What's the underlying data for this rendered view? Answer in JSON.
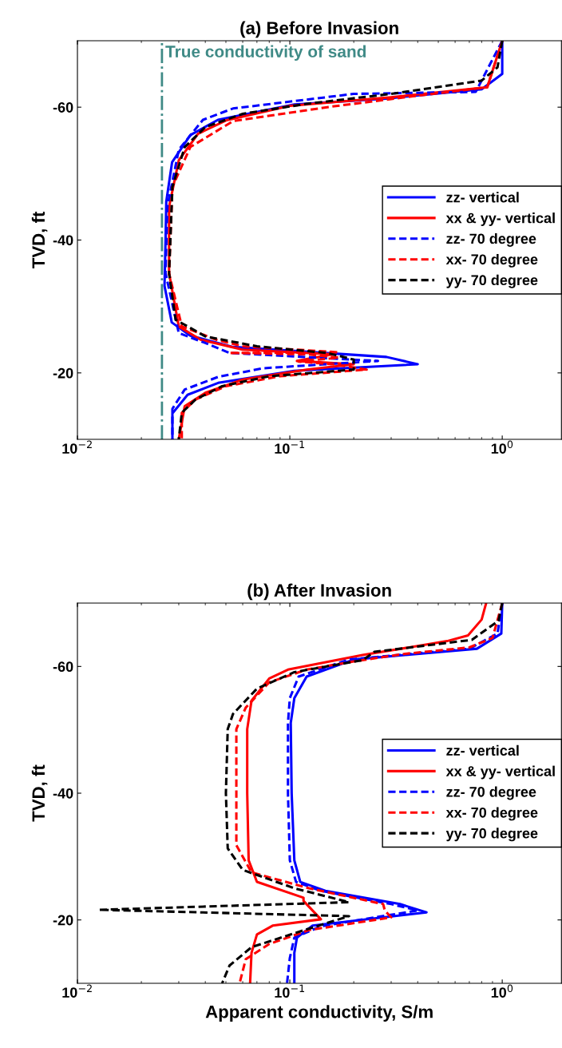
{
  "chart_data": [
    {
      "type": "line",
      "title": "(a) Before Invasion",
      "ylabel": "TVD, ft",
      "log": "x",
      "xlim": [
        0.01,
        1.9
      ],
      "xticks": [
        {
          "value": 0.01,
          "label": "10$^{−2}$"
        },
        {
          "value": 0.1,
          "label": "10$^{−1}$"
        },
        {
          "value": 1,
          "label": "10$^{0}$"
        }
      ],
      "ylim": [
        -10,
        -70
      ],
      "yticks": [
        -60,
        -40,
        -20
      ],
      "grid": false,
      "legend": "right",
      "ref_lines": [
        {
          "axis": "x",
          "value": 0.025,
          "label": "True conductivity of sand",
          "color": "#3f8a86",
          "line_style": "dashdot"
        }
      ],
      "series": [
        {
          "name": "zz- vertical",
          "color": "#0000ff",
          "line_style": "solid",
          "x": [
            1.0,
            1.0,
            0.8,
            0.285,
            0.105,
            0.0459,
            0.034,
            0.0279,
            0.0262,
            0.026,
            0.0257,
            0.0278,
            0.034,
            0.054,
            0.285,
            0.4,
            0.105,
            0.046,
            0.033,
            0.028,
            0.028
          ],
          "values": [
            -70,
            -65,
            -62.7,
            -61.3,
            -60.4,
            -58.1,
            -55.8,
            -51.7,
            -45.8,
            -40,
            -33.1,
            -27.6,
            -25.6,
            -23.9,
            -22.4,
            -21.3,
            -20.3,
            -18.5,
            -16.7,
            -13.9,
            -10
          ]
        },
        {
          "name": "xx & yy- vertical",
          "color": "#ff0000",
          "line_style": "solid",
          "x": [
            1.0,
            0.85,
            0.3,
            0.1,
            0.05,
            0.037,
            0.03,
            0.027,
            0.027,
            0.03,
            0.038,
            0.06,
            0.16,
            0.108,
            0.2,
            0.12,
            0.06,
            0.04,
            0.032,
            0.03
          ],
          "values": [
            -70,
            -63,
            -61.5,
            -60.2,
            -58,
            -56,
            -52,
            -45,
            -35,
            -27,
            -25,
            -23.5,
            -22.8,
            -21.8,
            -21.3,
            -20.5,
            -19,
            -17,
            -15,
            -10
          ]
        },
        {
          "name": "zz- 70 degree",
          "color": "#0000ff",
          "line_style": "dashed",
          "x": [
            1.0,
            0.75,
            0.2,
            0.054,
            0.039,
            0.03,
            0.0265,
            0.026,
            0.03,
            0.04,
            0.052,
            0.26,
            0.075,
            0.046,
            0.032,
            0.028,
            0.028
          ],
          "values": [
            -70,
            -62.3,
            -62,
            -59.8,
            -58.1,
            -53.6,
            -45,
            -35,
            -26,
            -24.5,
            -23,
            -21.8,
            -20.7,
            -19.4,
            -17.5,
            -14.6,
            -10
          ]
        },
        {
          "name": "xx- 70 degree",
          "color": "#ff0000",
          "line_style": "dashed",
          "x": [
            1.0,
            0.85,
            0.35,
            0.15,
            0.054,
            0.034,
            0.028,
            0.027,
            0.031,
            0.045,
            0.06,
            0.17,
            0.052,
            0.12,
            0.17,
            0.11,
            0.16,
            0.23,
            0.09,
            0.05,
            0.036,
            0.031,
            0.031
          ],
          "values": [
            -70,
            -63,
            -61.5,
            -60,
            -57.9,
            -54,
            -48,
            -35,
            -27,
            -25,
            -24,
            -23.1,
            -23,
            -22.8,
            -22.3,
            -21.7,
            -21.3,
            -20.5,
            -19.5,
            -18,
            -16,
            -14,
            -10
          ]
        },
        {
          "name": "yy- 70 degree",
          "color": "#000000",
          "line_style": "dashed",
          "x": [
            1.0,
            0.95,
            0.8,
            0.3,
            0.12,
            0.06,
            0.04,
            0.032,
            0.028,
            0.027,
            0.029,
            0.04,
            0.07,
            0.15,
            0.2,
            0.2,
            0.08,
            0.048,
            0.036,
            0.031,
            0.03
          ],
          "values": [
            -70,
            -66,
            -64,
            -62,
            -60.5,
            -59,
            -57,
            -54,
            -48,
            -35,
            -28,
            -25.5,
            -24,
            -23,
            -22,
            -20.5,
            -19.5,
            -18,
            -16,
            -14,
            -10
          ]
        }
      ]
    },
    {
      "type": "line",
      "title": "(b) After Invasion",
      "xlabel": "Apparent conductivity, S/m",
      "ylabel": "TVD, ft",
      "log": "x",
      "xlim": [
        0.01,
        1.9
      ],
      "xticks": [
        {
          "value": 0.01,
          "label": "10$^{−2}$"
        },
        {
          "value": 0.1,
          "label": "10$^{−1}$"
        },
        {
          "value": 1,
          "label": "10$^{0}$"
        }
      ],
      "ylim": [
        -10,
        -70
      ],
      "yticks": [
        -60,
        -40,
        -20
      ],
      "grid": false,
      "legend": "right",
      "series": [
        {
          "name": "zz- vertical",
          "color": "#0000ff",
          "line_style": "solid",
          "x": [
            1.0,
            0.99,
            0.76,
            0.2,
            0.12,
            0.105,
            0.101,
            0.102,
            0.105,
            0.112,
            0.147,
            0.33,
            0.44,
            0.128,
            0.108,
            0.105,
            0.105
          ],
          "values": [
            -70,
            -65.2,
            -62.8,
            -61.1,
            -58.4,
            -55,
            -51.1,
            -40,
            -29.4,
            -26,
            -24.6,
            -22.5,
            -21.2,
            -19.1,
            -17.2,
            -14.8,
            -10
          ]
        },
        {
          "name": "xx & yy- vertical",
          "color": "#ff0000",
          "line_style": "solid",
          "x": [
            0.84,
            0.8,
            0.69,
            0.55,
            0.22,
            0.098,
            0.08,
            0.066,
            0.063,
            0.063,
            0.064,
            0.07,
            0.116,
            0.116,
            0.14,
            0.083,
            0.07,
            0.066,
            0.065
          ],
          "values": [
            -70,
            -67.4,
            -64.9,
            -64,
            -61.8,
            -59.5,
            -58.1,
            -54.6,
            -50.1,
            -40,
            -29.4,
            -26,
            -23.5,
            -23,
            -20.1,
            -19.1,
            -17.7,
            -14.8,
            -10
          ]
        },
        {
          "name": "zz- 70 degree",
          "color": "#0000ff",
          "line_style": "dashed",
          "x": [
            1.0,
            0.95,
            0.7,
            0.19,
            0.11,
            0.1,
            0.098,
            0.098,
            0.1,
            0.107,
            0.14,
            0.3,
            0.4,
            0.14,
            0.105,
            0.1,
            0.097
          ],
          "values": [
            -70,
            -65.2,
            -62.8,
            -61.1,
            -58.4,
            -55,
            -51.1,
            -40,
            -29.4,
            -26,
            -24.6,
            -22.5,
            -21.5,
            -19,
            -17.2,
            -14,
            -10
          ]
        },
        {
          "name": "xx- 70 degree",
          "color": "#ff0000",
          "line_style": "dashed",
          "x": [
            1.0,
            0.9,
            0.7,
            0.35,
            0.2,
            0.12,
            0.08,
            0.062,
            0.056,
            0.056,
            0.056,
            0.066,
            0.123,
            0.275,
            0.28,
            0.3,
            0.123,
            0.08,
            0.062,
            0.058
          ],
          "values": [
            -70,
            -64.5,
            -63,
            -62,
            -60.8,
            -59.5,
            -57.5,
            -53.5,
            -50.1,
            -40,
            -31.8,
            -27.5,
            -25,
            -22.5,
            -21.5,
            -20.4,
            -18.4,
            -16.2,
            -13.8,
            -10
          ]
        },
        {
          "name": "yy- 70 degree",
          "color": "#000000",
          "line_style": "dashed",
          "x": [
            1.0,
            0.96,
            0.72,
            0.25,
            0.22,
            0.105,
            0.07,
            0.054,
            0.051,
            0.05,
            0.051,
            0.06,
            0.105,
            0.19,
            0.0126,
            0.19,
            0.112,
            0.066,
            0.052,
            0.048
          ],
          "values": [
            -70,
            -67.2,
            -64.2,
            -62.3,
            -61,
            -59.1,
            -56.5,
            -52.5,
            -50.1,
            -40,
            -31.3,
            -27.9,
            -25,
            -22.8,
            -21.6,
            -20.6,
            -18.2,
            -15.7,
            -12.8,
            -10
          ]
        }
      ]
    }
  ]
}
